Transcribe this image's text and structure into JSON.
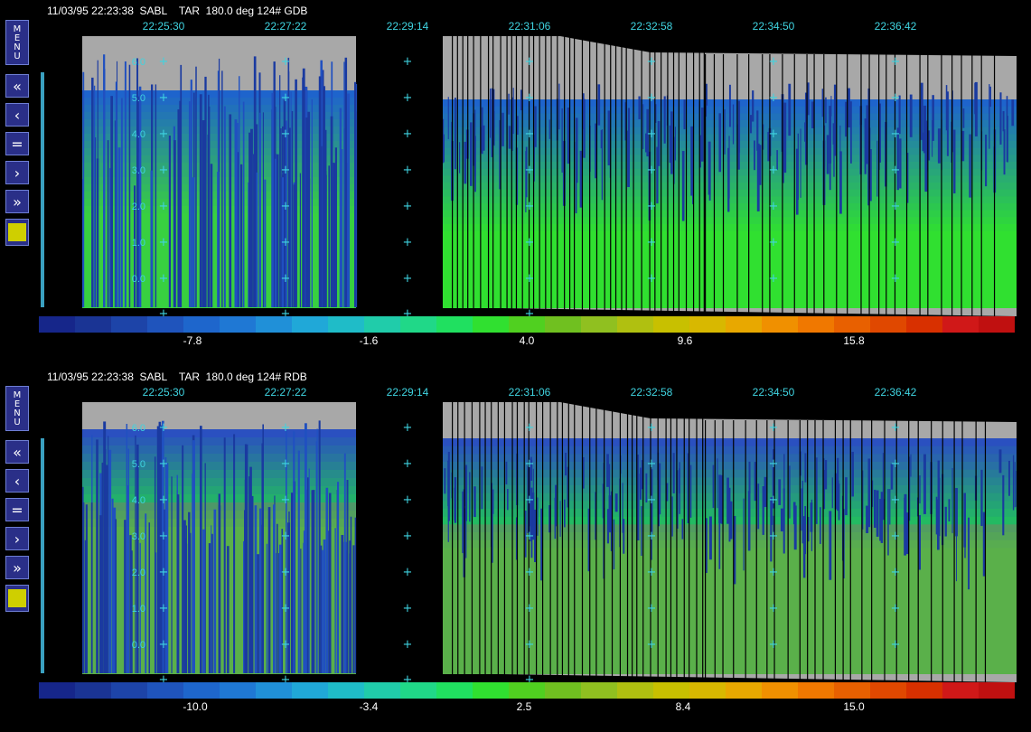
{
  "panels": [
    {
      "id": "top",
      "title": "11/03/95 22:23:38  SABL    TAR  180.0 deg 124# GDB",
      "time_labels": [
        "22:25:30",
        "22:27:22",
        "22:29:14",
        "22:31:06",
        "22:32:58",
        "22:34:50",
        "22:36:42"
      ],
      "height_labels": [
        "6.0",
        "5.0",
        "4.0",
        "3.0",
        "2.0",
        "1.0",
        "0.0"
      ],
      "colorbar_labels": [
        "-7.8",
        "-1.6",
        "4.0",
        "9.6",
        "15.8"
      ]
    },
    {
      "id": "bottom",
      "title": "11/03/95 22:23:38  SABL    TAR  180.0 deg 124# RDB",
      "time_labels": [
        "22:25:30",
        "22:27:22",
        "22:29:14",
        "22:31:06",
        "22:32:58",
        "22:34:50",
        "22:36:42"
      ],
      "height_labels": [
        "6.0",
        "5.0",
        "4.0",
        "3.0",
        "2.0",
        "1.0",
        "0.0"
      ],
      "colorbar_labels": [
        "-10.0",
        "-3.4",
        "2.5",
        "8.4",
        "15.0"
      ]
    }
  ],
  "sidebar": {
    "menu_label": "MENU",
    "buttons": [
      {
        "name": "fast-back",
        "glyph": "«"
      },
      {
        "name": "back",
        "glyph": "‹"
      },
      {
        "name": "stop",
        "glyph": "="
      },
      {
        "name": "forward",
        "glyph": "›"
      },
      {
        "name": "fast-forward",
        "glyph": "»"
      }
    ]
  },
  "colors": {
    "time_label": "#3fd3e0",
    "missing": "#a8a8a8",
    "colorbar": [
      "#16268a",
      "#1a3494",
      "#1d44a8",
      "#1f54bc",
      "#1e66cc",
      "#1f78d4",
      "#2090d8",
      "#20a8d8",
      "#1fbcc8",
      "#20ccaa",
      "#20d888",
      "#20e060",
      "#30e030",
      "#50d020",
      "#70c020",
      "#90c020",
      "#b0c010",
      "#c8c000",
      "#d8b800",
      "#e8a800",
      "#f09000",
      "#f07800",
      "#e86000",
      "#e04800",
      "#d83000",
      "#d01818",
      "#c01010"
    ]
  }
}
